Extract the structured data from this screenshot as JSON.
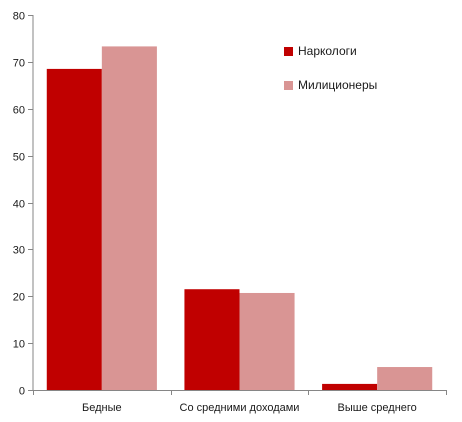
{
  "chart_data": {
    "type": "bar",
    "categories": [
      "Бедные",
      "Со средними доходами",
      "Выше среднего"
    ],
    "series": [
      {
        "name": "Наркологи",
        "values": [
          68.5,
          21.5,
          1.3
        ],
        "color": "#c00000"
      },
      {
        "name": "Милиционеры",
        "values": [
          73.3,
          20.7,
          4.9
        ],
        "color": "#d99594"
      }
    ],
    "ylim": [
      0,
      80
    ],
    "yticks": [
      0,
      10,
      20,
      30,
      40,
      50,
      60,
      70,
      80
    ],
    "grid": false,
    "legend_position": "top-right",
    "title": "",
    "xlabel": "",
    "ylabel": ""
  }
}
